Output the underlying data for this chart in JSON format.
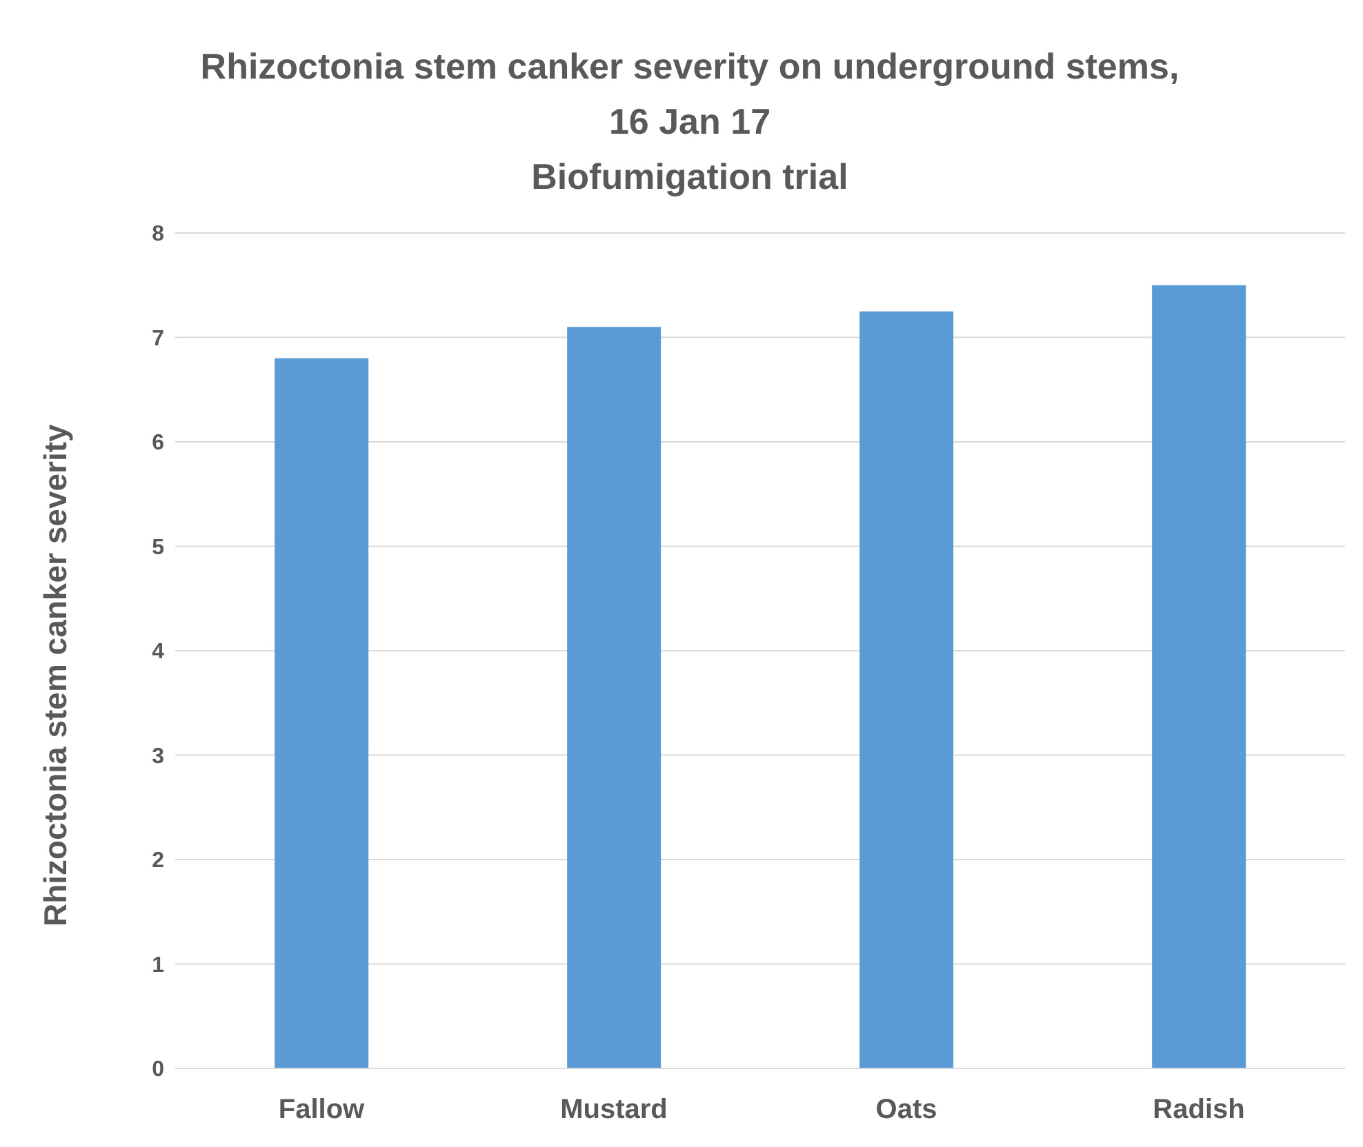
{
  "chart_data": {
    "type": "bar",
    "title": "Rhizoctonia stem canker severity on underground stems, 16 Jan 17\nBiofumigation trial",
    "ylabel": "Rhizoctonia stem canker severity",
    "categories": [
      "Fallow",
      "Mustard",
      "Oats",
      "Radish"
    ],
    "values": [
      6.8,
      7.1,
      7.25,
      7.5
    ],
    "color": "#5b9bd5",
    "ylim": [
      0,
      8
    ],
    "yticks": [
      0,
      1,
      2,
      3,
      4,
      5,
      6,
      7,
      8
    ],
    "grid": "y"
  }
}
